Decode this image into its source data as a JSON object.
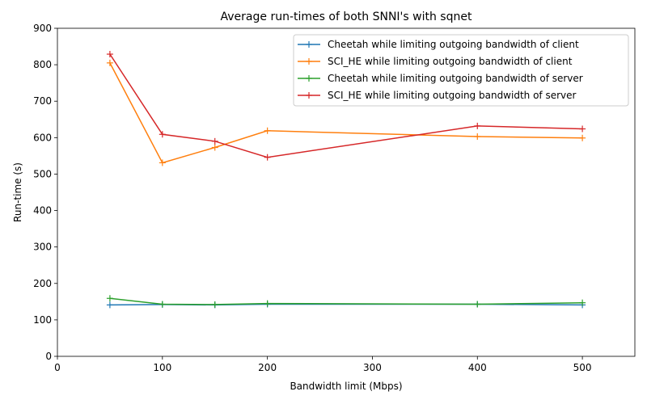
{
  "chart_data": {
    "type": "line",
    "title": "Average run-times of both SNNI's with sqnet",
    "xlabel": "Bandwidth limit (Mbps)",
    "ylabel": "Run-time (s)",
    "xlim": [
      0,
      550
    ],
    "ylim": [
      0,
      900
    ],
    "xticks": [
      0,
      100,
      200,
      300,
      400,
      500
    ],
    "yticks": [
      0,
      100,
      200,
      300,
      400,
      500,
      600,
      700,
      800,
      900
    ],
    "grid": false,
    "legend_position": "top-right",
    "marker": "+",
    "x": [
      50,
      100,
      150,
      200,
      400,
      500
    ],
    "series": [
      {
        "name": "Cheetah while limiting outgoing bandwidth of client",
        "color": "#1f77b4",
        "values": [
          141,
          142,
          141,
          143,
          143,
          141
        ]
      },
      {
        "name": "SCI_HE while limiting outgoing bandwidth of client",
        "color": "#ff7f0e",
        "values": [
          805,
          531,
          573,
          619,
          603,
          599
        ]
      },
      {
        "name": "Cheetah while limiting outgoing bandwidth of server",
        "color": "#2ca02c",
        "values": [
          159,
          143,
          142,
          145,
          143,
          147
        ]
      },
      {
        "name": "SCI_HE while limiting outgoing bandwidth of server",
        "color": "#d62728",
        "values": [
          829,
          609,
          590,
          546,
          632,
          624
        ]
      }
    ]
  }
}
